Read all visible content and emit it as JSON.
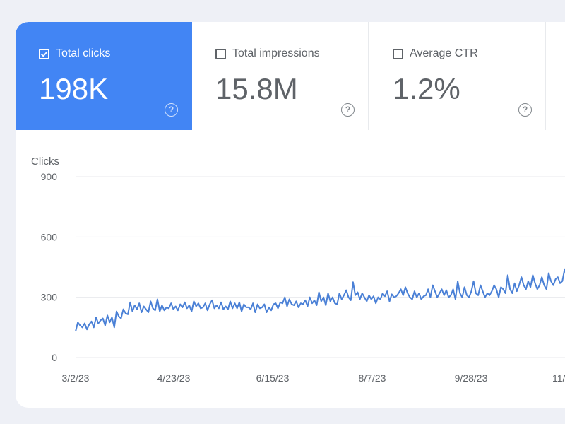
{
  "metrics": [
    {
      "label": "Total clicks",
      "value": "198K",
      "checked": true
    },
    {
      "label": "Total impressions",
      "value": "15.8M",
      "checked": false
    },
    {
      "label": "Average CTR",
      "value": "1.2%",
      "checked": false
    }
  ],
  "help_glyph": "?",
  "colors": {
    "active": "#4285f4",
    "line": "#4a80d6",
    "grid": "#e8eaed",
    "text": "#5f6368"
  },
  "chart_data": {
    "type": "line",
    "ylabel": "Clicks",
    "ylim": [
      0,
      900
    ],
    "yticks": [
      "900",
      "600",
      "300",
      "0"
    ],
    "xtick_labels": [
      "3/2/23",
      "4/23/23",
      "6/15/23",
      "8/7/23",
      "9/28/23",
      "11/"
    ],
    "grid": true,
    "series": [
      {
        "values": [
          130,
          175,
          160,
          150,
          170,
          140,
          165,
          180,
          150,
          200,
          170,
          185,
          195,
          160,
          210,
          175,
          200,
          150,
          230,
          205,
          195,
          240,
          220,
          215,
          275,
          230,
          260,
          240,
          270,
          225,
          255,
          240,
          225,
          280,
          245,
          235,
          290,
          230,
          260,
          235,
          250,
          245,
          270,
          240,
          255,
          235,
          265,
          250,
          275,
          245,
          260,
          230,
          280,
          255,
          270,
          245,
          250,
          270,
          235,
          265,
          285,
          245,
          260,
          245,
          275,
          240,
          255,
          240,
          280,
          245,
          270,
          245,
          275,
          230,
          265,
          250,
          250,
          240,
          270,
          225,
          265,
          245,
          250,
          265,
          225,
          250,
          235,
          265,
          270,
          245,
          275,
          270,
          300,
          255,
          290,
          265,
          260,
          280,
          250,
          270,
          265,
          285,
          255,
          300,
          270,
          285,
          260,
          325,
          280,
          300,
          260,
          320,
          280,
          300,
          270,
          265,
          320,
          290,
          310,
          335,
          300,
          285,
          375,
          310,
          325,
          290,
          320,
          300,
          280,
          310,
          290,
          305,
          270,
          300,
          290,
          320,
          305,
          330,
          280,
          315,
          300,
          305,
          320,
          340,
          310,
          350,
          320,
          300,
          290,
          330,
          300,
          320,
          290,
          305,
          310,
          340,
          300,
          360,
          330,
          300,
          320,
          340,
          310,
          335,
          300,
          310,
          340,
          290,
          380,
          320,
          300,
          350,
          310,
          300,
          330,
          380,
          320,
          310,
          360,
          330,
          300,
          320,
          310,
          330,
          360,
          340,
          300,
          350,
          340,
          320,
          410,
          340,
          320,
          370,
          330,
          360,
          400,
          360,
          340,
          380,
          350,
          410,
          370,
          340,
          360,
          400,
          360,
          340,
          420,
          380,
          360,
          390,
          400,
          370,
          380,
          440,
          400,
          390,
          420,
          470,
          420,
          400,
          450
        ]
      }
    ]
  }
}
